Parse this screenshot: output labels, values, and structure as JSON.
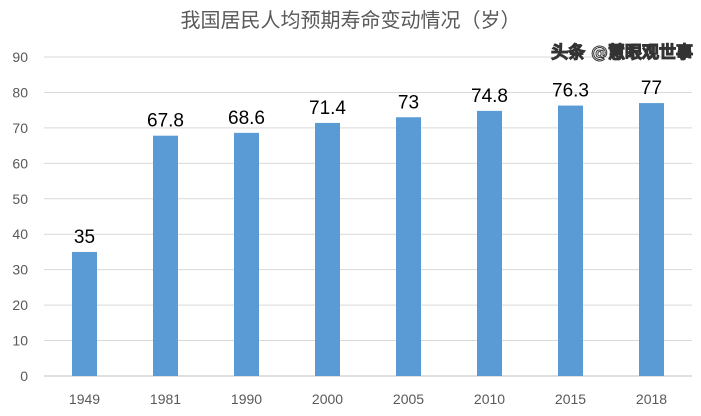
{
  "chart_data": {
    "type": "bar",
    "title": "我国居民人均预期寿命变动情况（岁）",
    "categories": [
      "1949",
      "1981",
      "1990",
      "2000",
      "2005",
      "2010",
      "2015",
      "2018"
    ],
    "values": [
      35,
      67.8,
      68.6,
      71.4,
      73,
      74.8,
      76.3,
      77
    ],
    "data_labels": [
      "35",
      "67.8",
      "68.6",
      "71.4",
      "73",
      "74.8",
      "76.3",
      "77"
    ],
    "ylim": [
      0,
      90
    ],
    "yticks": [
      0,
      10,
      20,
      30,
      40,
      50,
      60,
      70,
      80,
      90
    ],
    "grid": true,
    "legend": "none",
    "bar_color": "#5B9BD5"
  },
  "watermark": "头条 @慧眼观世事"
}
